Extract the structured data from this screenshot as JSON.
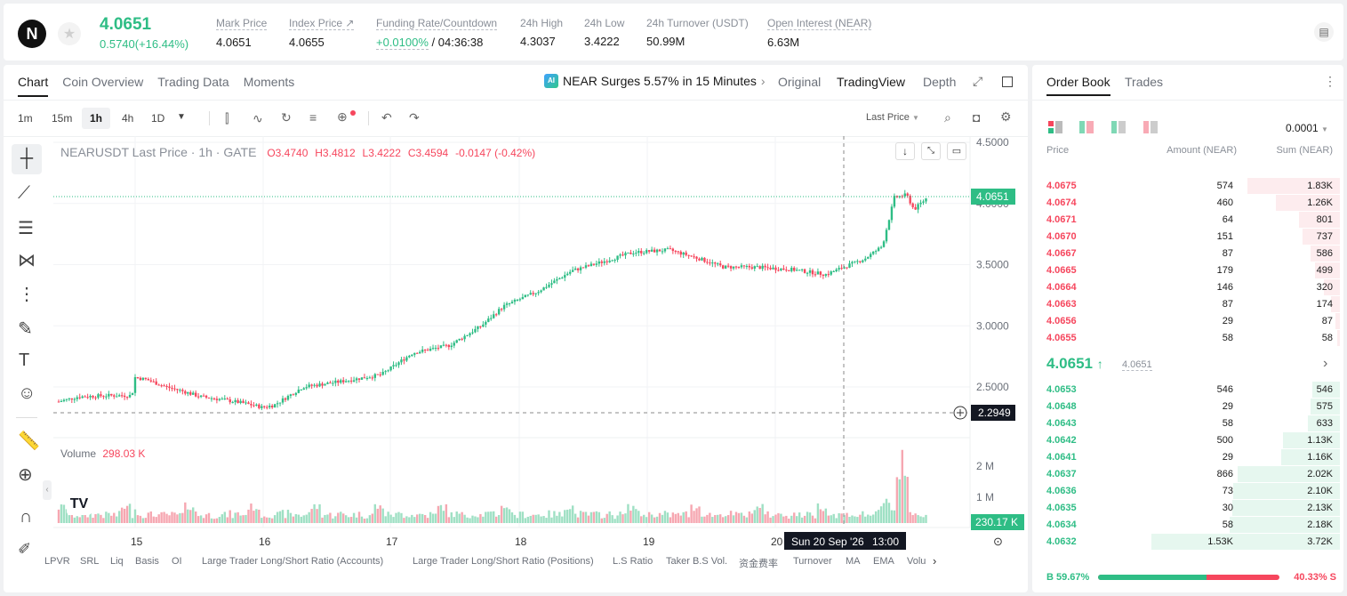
{
  "ticker": {
    "logo": "N",
    "price": "4.0651",
    "change": "0.5740(+16.44%)"
  },
  "stats": [
    {
      "label": "Mark Price",
      "value": "4.0651"
    },
    {
      "label": "Index Price ↗",
      "value": "4.0655"
    },
    {
      "label": "Funding Rate/Countdown",
      "value_rate": "+0.0100%",
      "value_count": "/ 04:36:38"
    },
    {
      "label": "24h High",
      "value": "4.3037"
    },
    {
      "label": "24h Low",
      "value": "3.4222"
    },
    {
      "label": "24h Turnover (USDT)",
      "value": "50.99M"
    },
    {
      "label": "Open Interest (NEAR)",
      "value": "6.63M"
    }
  ],
  "chart_tabs": [
    "Chart",
    "Coin Overview",
    "Trading Data",
    "Moments"
  ],
  "news": "NEAR Surges 5.57% in 15 Minutes",
  "view_tabs": [
    "Original",
    "TradingView",
    "Depth"
  ],
  "intervals": [
    "1m",
    "15m",
    "1h",
    "4h",
    "1D"
  ],
  "price_type": "Last Price",
  "legend": {
    "symbol": "NEARUSDT Last Price · 1h · GATE",
    "o": "O3.4740",
    "h": "H3.4812",
    "l": "L3.4222",
    "c": "C3.4594",
    "chg": "-0.0147 (-0.42%)"
  },
  "volume_label": "Volume",
  "volume_value": "298.03 K",
  "price_axis": [
    "4.5000",
    "4.0000",
    "3.5000",
    "3.0000",
    "2.5000"
  ],
  "last_price_tag": "4.0651",
  "cursor_price_tag": "2.2949",
  "vol_axis": [
    "2 M",
    "1 M"
  ],
  "vol_tag": "230.17 K",
  "date_axis": [
    "15",
    "16",
    "17",
    "18",
    "19",
    "20"
  ],
  "cursor_date": "Sun 20 Sep '26",
  "cursor_time": "13:00",
  "indicators": [
    "LPVR",
    "SRL",
    "Liq",
    "Basis",
    "OI",
    "Large Trader Long/Short Ratio (Accounts)",
    "Large Trader Long/Short Ratio (Positions)",
    "L.S Ratio",
    "Taker B.S Vol.",
    "资金费率",
    "Turnover",
    "MA",
    "EMA",
    "Volu"
  ],
  "orderbook": {
    "tabs": [
      "Order Book",
      "Trades"
    ],
    "precision": "0.0001",
    "headers": [
      "Price",
      "Amount (NEAR)",
      "Sum (NEAR)"
    ],
    "asks": [
      {
        "p": "4.0675",
        "a": "574",
        "s": "1.83K",
        "d": 0.49
      },
      {
        "p": "4.0674",
        "a": "460",
        "s": "1.26K",
        "d": 0.34
      },
      {
        "p": "4.0671",
        "a": "64",
        "s": "801",
        "d": 0.215
      },
      {
        "p": "4.0670",
        "a": "151",
        "s": "737",
        "d": 0.198
      },
      {
        "p": "4.0667",
        "a": "87",
        "s": "586",
        "d": 0.158
      },
      {
        "p": "4.0665",
        "a": "179",
        "s": "499",
        "d": 0.134
      },
      {
        "p": "4.0664",
        "a": "146",
        "s": "320",
        "d": 0.086
      },
      {
        "p": "4.0663",
        "a": "87",
        "s": "174",
        "d": 0.047
      },
      {
        "p": "4.0656",
        "a": "29",
        "s": "87",
        "d": 0.023
      },
      {
        "p": "4.0655",
        "a": "58",
        "s": "58",
        "d": 0.016
      }
    ],
    "mid": "4.0651",
    "mid_mark": "4.0651",
    "bids": [
      {
        "p": "4.0653",
        "a": "546",
        "s": "546",
        "d": 0.147
      },
      {
        "p": "4.0648",
        "a": "29",
        "s": "575",
        "d": 0.155
      },
      {
        "p": "4.0643",
        "a": "58",
        "s": "633",
        "d": 0.17
      },
      {
        "p": "4.0642",
        "a": "500",
        "s": "1.13K",
        "d": 0.304
      },
      {
        "p": "4.0641",
        "a": "29",
        "s": "1.16K",
        "d": 0.312
      },
      {
        "p": "4.0637",
        "a": "866",
        "s": "2.02K",
        "d": 0.543
      },
      {
        "p": "4.0636",
        "a": "73",
        "s": "2.10K",
        "d": 0.565
      },
      {
        "p": "4.0635",
        "a": "30",
        "s": "2.13K",
        "d": 0.573
      },
      {
        "p": "4.0634",
        "a": "58",
        "s": "2.18K",
        "d": 0.586
      },
      {
        "p": "4.0632",
        "a": "1.53K",
        "s": "3.72K",
        "d": 1.0
      }
    ],
    "buy_ratio": "B 59.67%",
    "sell_ratio": "40.33% S",
    "buy_frac": 0.5967
  },
  "colors": {
    "up": "#2ebd85",
    "down": "#f6465d"
  }
}
